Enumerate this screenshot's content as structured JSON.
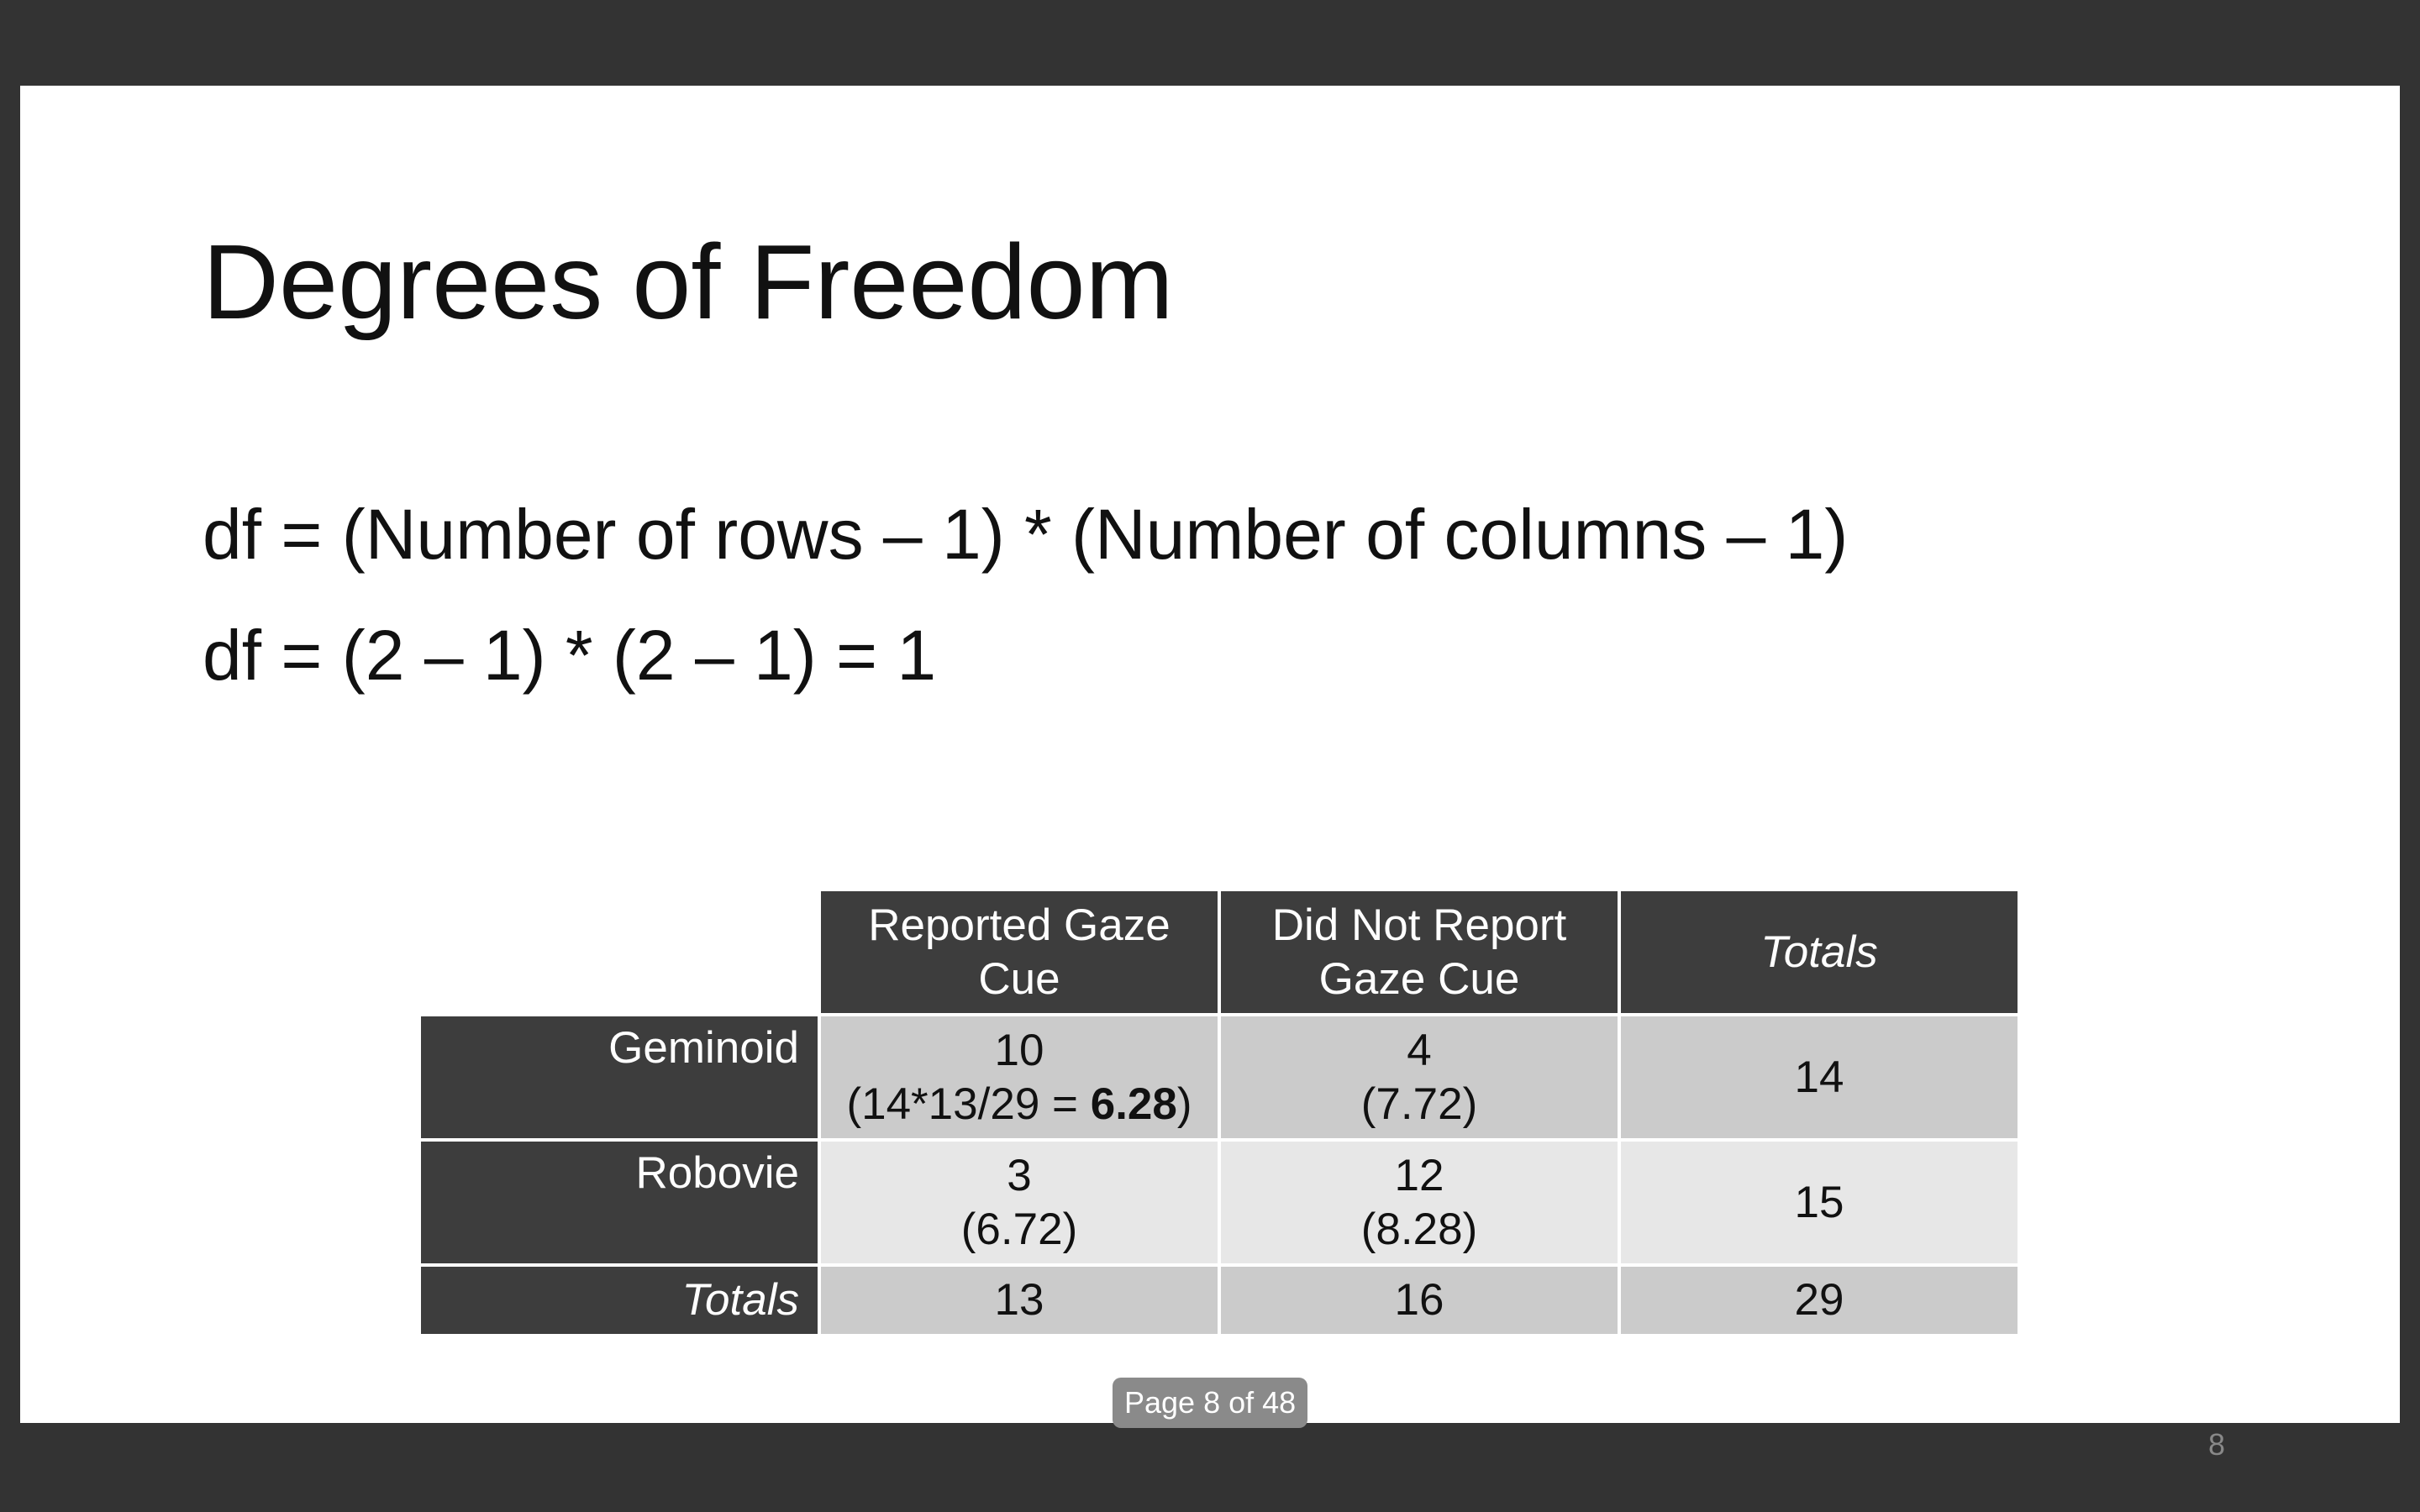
{
  "slide": {
    "title": "Degrees of Freedom",
    "formula_line_1": "df = (Number of rows – 1) * (Number of columns – 1)",
    "formula_line_2": "df = (2 – 1) * (2 – 1) = 1",
    "slide_number": "8"
  },
  "table": {
    "columns": {
      "reported": {
        "line_1": "Reported Gaze",
        "line_2": "Cue"
      },
      "not_reported": {
        "line_1": "Did Not Report",
        "line_2": "Gaze Cue"
      },
      "totals": "Totals"
    },
    "rows": {
      "geminoid": {
        "label": "Geminoid",
        "reported_observed": "10",
        "reported_expected_prefix": "(14*13/29 = ",
        "reported_expected_value": "6.28",
        "reported_expected_suffix": ")",
        "not_reported_observed": "4",
        "not_reported_expected": "(7.72)",
        "total": "14"
      },
      "robovie": {
        "label": "Robovie",
        "reported_observed": "3",
        "reported_expected": "(6.72)",
        "not_reported_observed": "12",
        "not_reported_expected": "(8.28)",
        "total": "15"
      },
      "totals": {
        "label": "Totals",
        "reported": "13",
        "not_reported": "16",
        "total": "29"
      }
    }
  },
  "viewer": {
    "page_indicator": "Page 8 of 48"
  },
  "colors": {
    "viewer_background": "#333333",
    "header_cell": "#3d3d3d",
    "dark_row": "#cbcbcb",
    "light_row": "#e7e7e7"
  }
}
